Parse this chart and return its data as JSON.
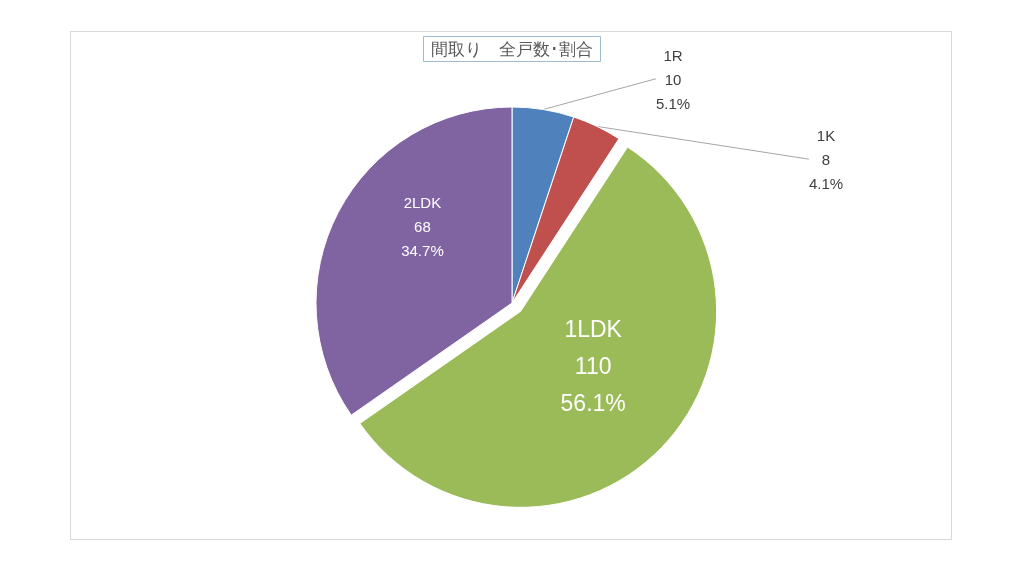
{
  "chart_data": {
    "type": "pie",
    "title": "間取り　全戸数･割合",
    "categories": [
      "1R",
      "1K",
      "1LDK",
      "2LDK"
    ],
    "values": [
      10,
      8,
      110,
      68
    ],
    "colors": [
      "#4f81bd",
      "#c0504d",
      "#9bbb59",
      "#8064a2"
    ],
    "value_labels": [
      "10\n5.1%",
      "8\n4.1%",
      "110\n56.1%",
      "68\n34.7%"
    ],
    "legend": false
  }
}
